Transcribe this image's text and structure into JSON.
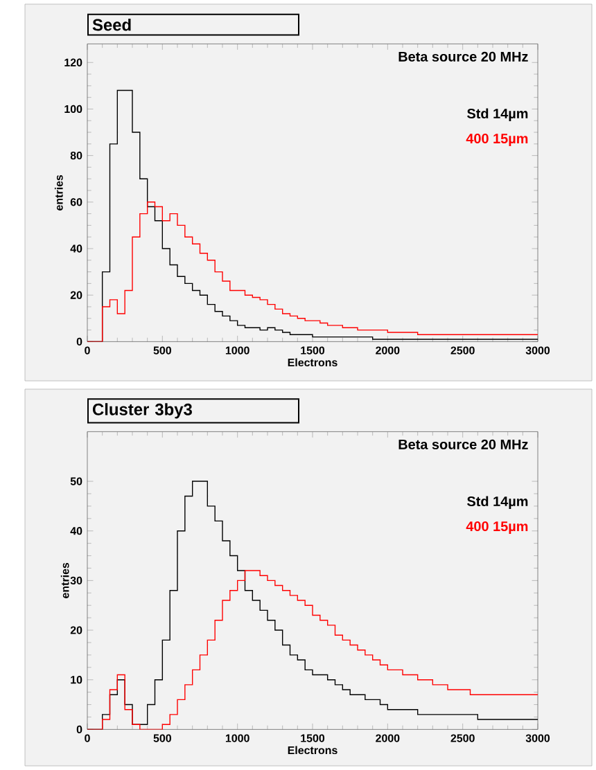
{
  "chart_data": [
    {
      "type": "histogram",
      "title": "Seed",
      "xlabel": "Electrons",
      "ylabel": "entries",
      "annotations": [
        "Beta source 20 MHz"
      ],
      "bins": [
        0,
        50,
        100,
        150,
        200,
        250,
        300,
        350,
        400,
        450,
        500,
        550,
        600,
        650,
        700,
        750,
        800,
        850,
        900,
        950,
        1000,
        1050,
        1100,
        1150,
        1200,
        1250,
        1300,
        1350,
        1400,
        1450,
        1500,
        1550,
        1600,
        1650,
        1700,
        1750,
        1800,
        1850,
        1900,
        1950,
        2000,
        2050,
        2100,
        2150,
        2200,
        2250,
        2300,
        2350,
        2400,
        2450,
        2500,
        2550,
        2600,
        2650,
        2700,
        2750,
        2800,
        2850,
        2900,
        2950,
        3000
      ],
      "series": [
        {
          "name": "Std 14µm",
          "color": "#000000",
          "values": [
            0,
            0,
            30,
            85,
            108,
            108,
            90,
            70,
            58,
            52,
            40,
            33,
            28,
            25,
            22,
            20,
            16,
            13,
            11,
            9,
            7,
            6,
            6,
            5,
            6,
            5,
            4,
            3,
            3,
            3,
            2,
            2,
            2,
            2,
            2,
            2,
            2,
            2,
            1,
            1,
            1,
            1,
            1,
            1,
            1,
            1,
            1,
            1,
            1,
            1,
            1,
            1,
            1,
            1,
            1,
            1,
            1,
            1,
            1,
            1
          ]
        },
        {
          "name": "400 15µm",
          "color": "#ff0000",
          "values": [
            0,
            0,
            15,
            18,
            12,
            22,
            45,
            55,
            60,
            58,
            52,
            55,
            50,
            45,
            42,
            38,
            35,
            30,
            26,
            22,
            22,
            20,
            19,
            18,
            16,
            14,
            12,
            11,
            10,
            9,
            9,
            8,
            7,
            7,
            6,
            6,
            5,
            5,
            5,
            5,
            4,
            4,
            4,
            4,
            3,
            3,
            3,
            3,
            3,
            3,
            3,
            3,
            3,
            3,
            3,
            3,
            3,
            3,
            3,
            3
          ]
        }
      ],
      "xlim": [
        0,
        3000
      ],
      "ylim": [
        0,
        128
      ],
      "xticks": [
        0,
        500,
        1000,
        1500,
        2000,
        2500,
        3000
      ],
      "yticks": [
        0,
        20,
        40,
        60,
        80,
        100,
        120
      ],
      "legend": "top right",
      "grid": false
    },
    {
      "type": "histogram",
      "title": "Cluster 3by3",
      "xlabel": "Electrons",
      "ylabel": "entries",
      "annotations": [
        "Beta source 20 MHz"
      ],
      "bins": [
        0,
        50,
        100,
        150,
        200,
        250,
        300,
        350,
        400,
        450,
        500,
        550,
        600,
        650,
        700,
        750,
        800,
        850,
        900,
        950,
        1000,
        1050,
        1100,
        1150,
        1200,
        1250,
        1300,
        1350,
        1400,
        1450,
        1500,
        1550,
        1600,
        1650,
        1700,
        1750,
        1800,
        1850,
        1900,
        1950,
        2000,
        2050,
        2100,
        2150,
        2200,
        2250,
        2300,
        2350,
        2400,
        2450,
        2500,
        2550,
        2600,
        2650,
        2700,
        2750,
        2800,
        2850,
        2900,
        2950,
        3000
      ],
      "series": [
        {
          "name": "Std 14µm",
          "color": "#000000",
          "values": [
            0,
            0,
            3,
            7,
            10,
            5,
            1,
            1,
            5,
            10,
            18,
            28,
            40,
            47,
            50,
            50,
            45,
            42,
            38,
            35,
            32,
            28,
            26,
            24,
            22,
            20,
            17,
            15,
            14,
            12,
            11,
            11,
            10,
            9,
            8,
            7,
            7,
            6,
            6,
            5,
            4,
            4,
            4,
            4,
            3,
            3,
            3,
            3,
            3,
            3,
            3,
            3,
            2,
            2,
            2,
            2,
            2,
            2,
            2,
            2
          ]
        },
        {
          "name": "400 15µm",
          "color": "#ff0000",
          "values": [
            0,
            0,
            2,
            8,
            11,
            4,
            1,
            0,
            0,
            0,
            1,
            3,
            6,
            9,
            12,
            15,
            18,
            22,
            26,
            28,
            30,
            32,
            32,
            31,
            30,
            29,
            28,
            27,
            26,
            25,
            23,
            22,
            21,
            19,
            18,
            17,
            16,
            15,
            14,
            13,
            12,
            12,
            11,
            11,
            10,
            10,
            9,
            9,
            8,
            8,
            8,
            7,
            7,
            7,
            7,
            7,
            7,
            7,
            7,
            7
          ]
        }
      ],
      "xlim": [
        0,
        3000
      ],
      "ylim": [
        0,
        60
      ],
      "xticks": [
        0,
        500,
        1000,
        1500,
        2000,
        2500,
        3000
      ],
      "yticks": [
        0,
        10,
        20,
        30,
        40,
        50
      ],
      "legend": "top right",
      "grid": false
    }
  ]
}
